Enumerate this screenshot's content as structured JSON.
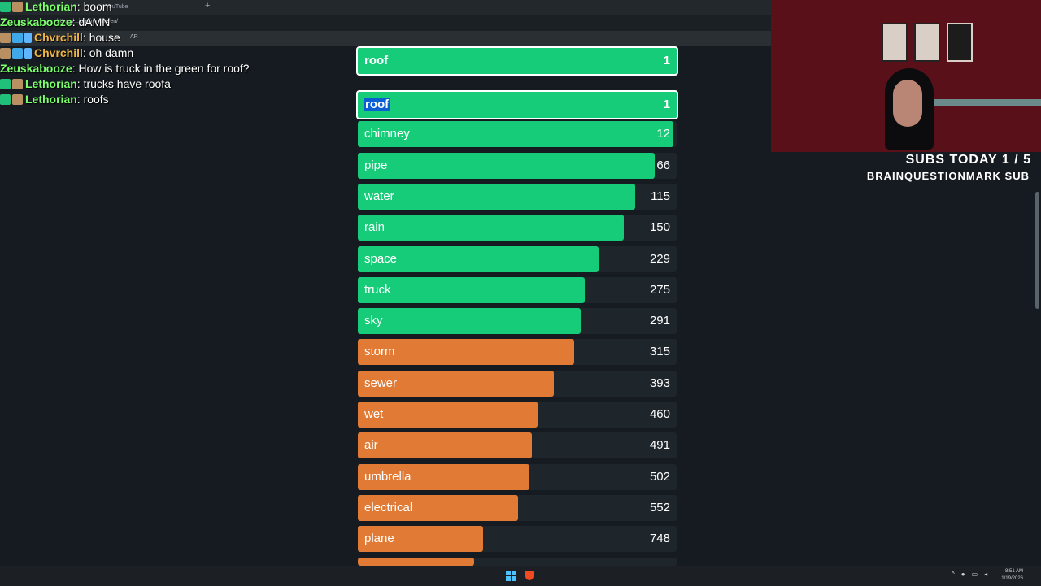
{
  "browser": {
    "tab_title": "YouTube",
    "address": "https://...ionsfromme/en/",
    "bookmark": "AR"
  },
  "chat": [
    {
      "user": "Lethorian",
      "color": "#7bff6b",
      "message": "boom"
    },
    {
      "user": "Zeuskabooze",
      "color": "#7bff6b",
      "message": "dAMN"
    },
    {
      "user": "Chvrchill",
      "color": "#f0b544",
      "message": "house"
    },
    {
      "user": "Chvrchill",
      "color": "#f0b544",
      "message": "oh damn"
    },
    {
      "user": "Zeuskabooze",
      "color": "#7bff6b",
      "message": "How is truck in the green for roof?"
    },
    {
      "user": "Lethorian",
      "color": "#7bff6b",
      "message": "trucks have roofa"
    },
    {
      "user": "Lethorian",
      "color": "#7bff6b",
      "message": "roofs"
    }
  ],
  "game": {
    "guess": {
      "word": "roof",
      "rank": "1"
    },
    "list": [
      {
        "word": "roof",
        "rank": "1",
        "fill": 1.0,
        "color": "green",
        "selected": true
      },
      {
        "word": "chimney",
        "rank": "12",
        "fill": 0.99,
        "color": "green"
      },
      {
        "word": "pipe",
        "rank": "66",
        "fill": 0.93,
        "color": "green"
      },
      {
        "word": "water",
        "rank": "115",
        "fill": 0.87,
        "color": "green"
      },
      {
        "word": "rain",
        "rank": "150",
        "fill": 0.835,
        "color": "green"
      },
      {
        "word": "space",
        "rank": "229",
        "fill": 0.755,
        "color": "green"
      },
      {
        "word": "truck",
        "rank": "275",
        "fill": 0.712,
        "color": "green"
      },
      {
        "word": "sky",
        "rank": "291",
        "fill": 0.7,
        "color": "green"
      },
      {
        "word": "storm",
        "rank": "315",
        "fill": 0.678,
        "color": "orange"
      },
      {
        "word": "sewer",
        "rank": "393",
        "fill": 0.615,
        "color": "orange"
      },
      {
        "word": "wet",
        "rank": "460",
        "fill": 0.565,
        "color": "orange"
      },
      {
        "word": "air",
        "rank": "491",
        "fill": 0.545,
        "color": "orange"
      },
      {
        "word": "umbrella",
        "rank": "502",
        "fill": 0.538,
        "color": "orange"
      },
      {
        "word": "electrical",
        "rank": "552",
        "fill": 0.503,
        "color": "orange"
      },
      {
        "word": "plane",
        "rank": "748",
        "fill": 0.394,
        "color": "orange"
      }
    ]
  },
  "overlay": {
    "subs_today": "SUBS TODAY 1 / 5",
    "latest_sub": "BRAINQUESTIONMARK SUB"
  },
  "taskbar": {
    "time": "8:51 AM",
    "date": "1/19/2026"
  }
}
